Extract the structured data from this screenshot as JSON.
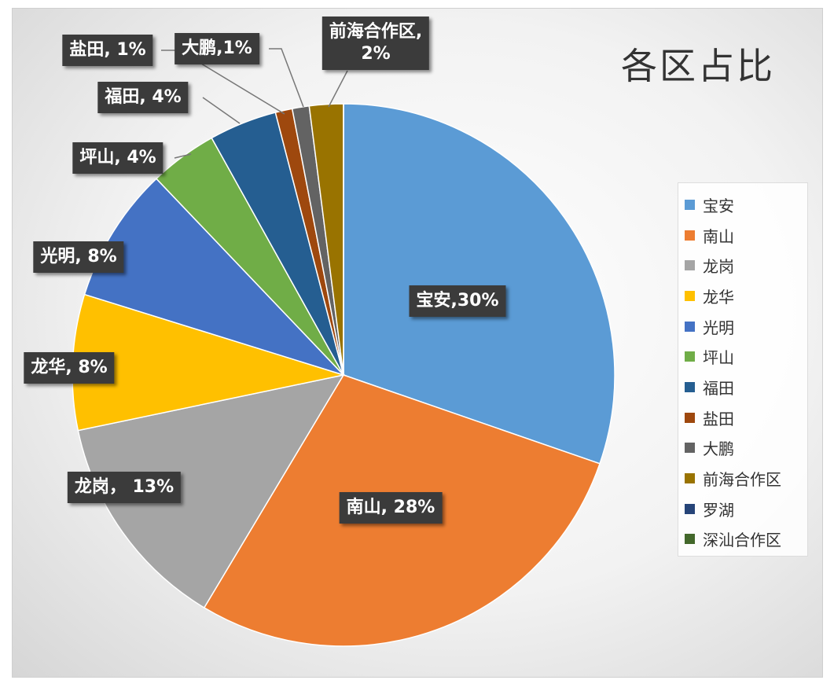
{
  "chart_data": {
    "type": "pie",
    "title": "各区占比",
    "categories": [
      "宝安",
      "南山",
      "龙岗",
      "龙华",
      "光明",
      "坪山",
      "福田",
      "盐田",
      "大鹏",
      "前海合作区",
      "罗湖",
      "深汕合作区"
    ],
    "values": [
      30,
      28,
      13,
      8,
      8,
      4,
      4,
      1,
      1,
      2,
      0,
      0
    ],
    "value_labels": [
      "宝安,30%",
      "南山, 28%",
      "龙岗， 13%",
      "龙华, 8%",
      "光明, 8%",
      "坪山, 4%",
      "福田, 4%",
      "盐田, 1%",
      "大鹏,1%",
      "前海合作区,\n2%",
      null,
      null
    ],
    "colors": [
      "#5b9bd5",
      "#ed7d31",
      "#a5a5a5",
      "#ffc000",
      "#4472c4",
      "#70ad47",
      "#255e91",
      "#9e480e",
      "#636363",
      "#997300",
      "#264478",
      "#43682b"
    ],
    "legend": "right"
  }
}
